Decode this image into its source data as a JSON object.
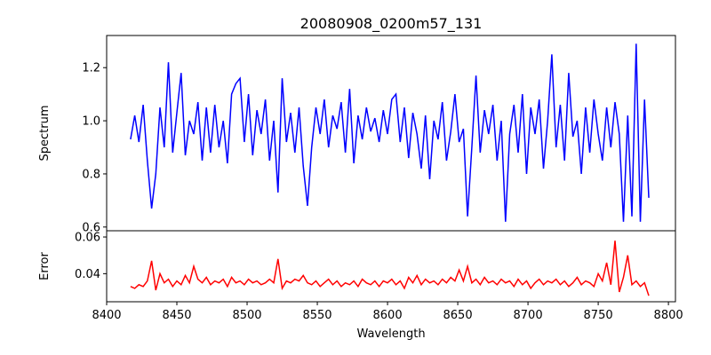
{
  "chart_data": [
    {
      "type": "line",
      "title": "20080908_0200m57_131",
      "xlabel": "",
      "ylabel": "Spectrum",
      "xlim": [
        8400,
        8805
      ],
      "ylim": [
        0.586,
        1.321
      ],
      "yticks": [
        0.6,
        0.8,
        1.0,
        1.2
      ],
      "ytick_labels": [
        "0.6",
        "0.8",
        "1.0",
        "1.2"
      ],
      "color": "#0000ff",
      "x_start": 8417,
      "x_step": 3,
      "values": [
        0.93,
        1.02,
        0.92,
        1.06,
        0.85,
        0.67,
        0.8,
        1.05,
        0.9,
        1.22,
        0.88,
        1.03,
        1.18,
        0.87,
        1.0,
        0.95,
        1.07,
        0.85,
        1.05,
        0.88,
        1.06,
        0.9,
        1.0,
        0.84,
        1.1,
        1.14,
        1.16,
        0.92,
        1.1,
        0.87,
        1.04,
        0.95,
        1.08,
        0.85,
        1.0,
        0.73,
        1.16,
        0.92,
        1.03,
        0.88,
        1.05,
        0.83,
        0.68,
        0.9,
        1.05,
        0.95,
        1.08,
        0.9,
        1.02,
        0.97,
        1.07,
        0.88,
        1.12,
        0.84,
        1.02,
        0.93,
        1.05,
        0.96,
        1.01,
        0.92,
        1.04,
        0.95,
        1.08,
        1.1,
        0.92,
        1.05,
        0.86,
        1.03,
        0.95,
        0.82,
        1.02,
        0.78,
        1.0,
        0.93,
        1.07,
        0.85,
        0.96,
        1.1,
        0.92,
        0.97,
        0.64,
        0.9,
        1.17,
        0.88,
        1.04,
        0.95,
        1.06,
        0.85,
        1.0,
        0.62,
        0.95,
        1.06,
        0.88,
        1.1,
        0.8,
        1.05,
        0.95,
        1.08,
        0.82,
        1.0,
        1.25,
        0.9,
        1.06,
        0.85,
        1.18,
        0.94,
        1.0,
        0.8,
        1.05,
        0.88,
        1.08,
        0.95,
        0.85,
        1.05,
        0.9,
        1.07,
        0.95,
        0.62,
        1.02,
        0.64,
        1.29,
        0.62,
        1.08,
        0.71
      ]
    },
    {
      "type": "line",
      "title": "",
      "xlabel": "Wavelength",
      "ylabel": "Error",
      "xlim": [
        8400,
        8805
      ],
      "ylim": [
        0.0247,
        0.0634
      ],
      "xticks": [
        8400,
        8450,
        8500,
        8550,
        8600,
        8650,
        8700,
        8750,
        8800
      ],
      "xtick_labels": [
        "8400",
        "8450",
        "8500",
        "8550",
        "8600",
        "8650",
        "8700",
        "8750",
        "8800"
      ],
      "yticks": [
        0.04,
        0.06
      ],
      "ytick_labels": [
        "0.04",
        "0.06"
      ],
      "color": "#ff0000",
      "x_start": 8417,
      "x_step": 3,
      "values": [
        0.033,
        0.032,
        0.034,
        0.033,
        0.036,
        0.047,
        0.031,
        0.04,
        0.035,
        0.037,
        0.033,
        0.036,
        0.034,
        0.039,
        0.035,
        0.044,
        0.037,
        0.035,
        0.038,
        0.034,
        0.036,
        0.035,
        0.037,
        0.033,
        0.038,
        0.035,
        0.036,
        0.034,
        0.037,
        0.035,
        0.036,
        0.034,
        0.035,
        0.037,
        0.035,
        0.048,
        0.032,
        0.036,
        0.035,
        0.037,
        0.036,
        0.039,
        0.035,
        0.034,
        0.036,
        0.033,
        0.035,
        0.037,
        0.034,
        0.036,
        0.033,
        0.035,
        0.034,
        0.036,
        0.033,
        0.037,
        0.035,
        0.034,
        0.036,
        0.033,
        0.036,
        0.035,
        0.037,
        0.034,
        0.036,
        0.032,
        0.038,
        0.035,
        0.039,
        0.034,
        0.037,
        0.035,
        0.036,
        0.034,
        0.037,
        0.035,
        0.038,
        0.036,
        0.042,
        0.036,
        0.044,
        0.035,
        0.037,
        0.034,
        0.038,
        0.035,
        0.036,
        0.034,
        0.037,
        0.035,
        0.036,
        0.033,
        0.037,
        0.034,
        0.036,
        0.032,
        0.035,
        0.037,
        0.034,
        0.036,
        0.035,
        0.037,
        0.034,
        0.036,
        0.033,
        0.035,
        0.038,
        0.034,
        0.036,
        0.035,
        0.033,
        0.04,
        0.036,
        0.046,
        0.034,
        0.058,
        0.03,
        0.038,
        0.05,
        0.034,
        0.036,
        0.033,
        0.035,
        0.028
      ]
    }
  ]
}
